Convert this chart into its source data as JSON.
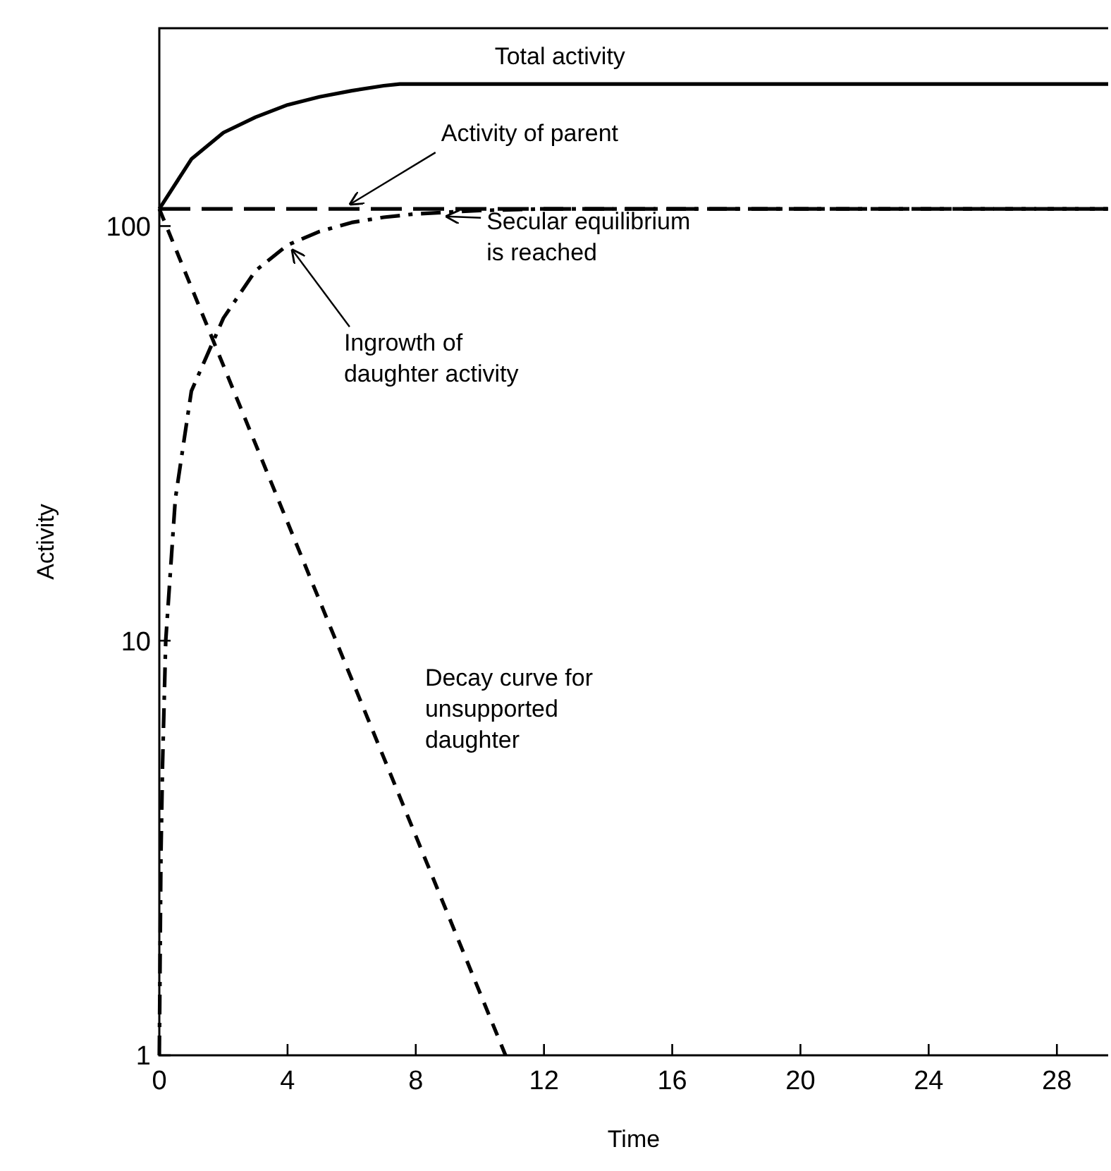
{
  "chart_data": {
    "type": "line",
    "xlabel": "Time",
    "ylabel": "Activity",
    "log": "y",
    "xlim": [
      0,
      29.6
    ],
    "ylim": [
      1,
      300
    ],
    "xticks": [
      0,
      4,
      8,
      12,
      16,
      20,
      24,
      28
    ],
    "yticks": [
      1,
      10,
      100
    ],
    "grid": false,
    "series": [
      {
        "color": "#000000",
        "line_style": "solid",
        "x": [
          0,
          1,
          2,
          3,
          4,
          5,
          6,
          7,
          7.5,
          29.6
        ],
        "values": [
          110,
          145,
          168,
          183,
          196,
          205,
          212,
          218,
          220,
          220
        ]
      },
      {
        "color": "#000000",
        "line_style": "longdash",
        "x": [
          0,
          29.6
        ],
        "values": [
          110,
          110
        ]
      },
      {
        "color": "#000000",
        "line_style": "dashdot",
        "x": [
          0,
          0.05,
          0.1,
          0.2,
          0.5,
          1,
          2,
          3,
          4,
          5,
          6,
          7,
          8,
          9,
          10,
          12,
          29.6
        ],
        "values": [
          1,
          3,
          5,
          10,
          22,
          40,
          60,
          78,
          90,
          97,
          102,
          105,
          107,
          108,
          109,
          110,
          110
        ]
      },
      {
        "color": "#000000",
        "line_style": "dashed",
        "x": [
          0,
          10.8
        ],
        "values": [
          110,
          1
        ]
      }
    ],
    "annotations": [
      {
        "text": "Total activity",
        "x": 12,
        "y": 220
      },
      {
        "text": "Activity of parent",
        "x": 5.8,
        "y": 110
      },
      {
        "text": "Secular equilibrium\nis reached",
        "x": 8.8,
        "y": 108
      },
      {
        "text": "Ingrowth of\ndaughter activity",
        "x": 4,
        "y": 90
      },
      "Decay curve for\nunsupported\ndaughter"
    ]
  }
}
